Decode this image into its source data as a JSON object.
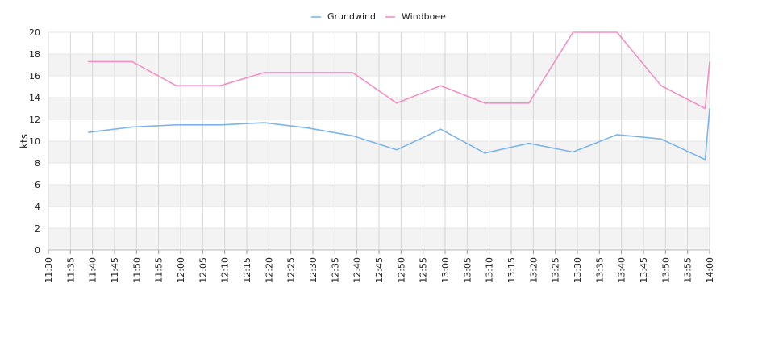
{
  "chart_data": {
    "type": "line",
    "ylabel": "kts",
    "ylim": [
      0,
      20
    ],
    "y_ticks": [
      "0",
      "2",
      "4",
      "6",
      "8",
      "10",
      "12",
      "14",
      "16",
      "18",
      "20"
    ],
    "x_ticks": [
      "11:30",
      "11:35",
      "11:40",
      "11:45",
      "11:50",
      "11:55",
      "12:00",
      "12:05",
      "12:10",
      "12:15",
      "12:20",
      "12:25",
      "12:30",
      "12:35",
      "12:40",
      "12:45",
      "12:50",
      "12:55",
      "13:00",
      "13:05",
      "13:10",
      "13:15",
      "13:20",
      "13:25",
      "13:30",
      "13:35",
      "13:40",
      "13:45",
      "13:50",
      "13:55",
      "14:00"
    ],
    "x_range": [
      "11:30",
      "14:00"
    ],
    "legend_position": "top-center",
    "grid": true,
    "series": [
      {
        "name": "Grundwind",
        "color": "#7cb5ec",
        "points": [
          [
            "11:39",
            10.8
          ],
          [
            "11:49",
            11.3
          ],
          [
            "11:59",
            11.5
          ],
          [
            "12:09",
            11.5
          ],
          [
            "12:19",
            11.7
          ],
          [
            "12:29",
            11.2
          ],
          [
            "12:39",
            10.5
          ],
          [
            "12:49",
            9.2
          ],
          [
            "12:59",
            11.1
          ],
          [
            "13:09",
            8.9
          ],
          [
            "13:19",
            9.8
          ],
          [
            "13:29",
            9.0
          ],
          [
            "13:39",
            10.6
          ],
          [
            "13:49",
            10.2
          ],
          [
            "13:59",
            8.3
          ],
          [
            "14:00",
            13.0
          ]
        ]
      },
      {
        "name": "Windboee",
        "color": "#f28fc6",
        "points": [
          [
            "11:39",
            17.3
          ],
          [
            "11:49",
            17.3
          ],
          [
            "11:59",
            15.1
          ],
          [
            "12:09",
            15.1
          ],
          [
            "12:19",
            16.3
          ],
          [
            "12:29",
            16.3
          ],
          [
            "12:39",
            16.3
          ],
          [
            "12:49",
            13.5
          ],
          [
            "12:59",
            15.1
          ],
          [
            "13:09",
            13.5
          ],
          [
            "13:19",
            13.5
          ],
          [
            "13:29",
            20.0
          ],
          [
            "13:39",
            20.0
          ],
          [
            "13:49",
            15.1
          ],
          [
            "13:59",
            13.0
          ],
          [
            "14:00",
            17.3
          ]
        ]
      }
    ]
  }
}
